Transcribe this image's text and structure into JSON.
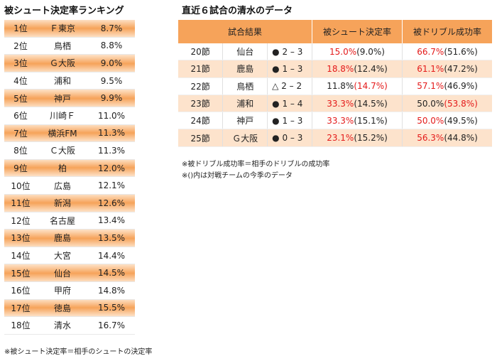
{
  "ranking": {
    "title": "被シュート決定率ランキング",
    "rows": [
      {
        "rank": "1位",
        "team": "Ｆ東京",
        "rate": "8.7%"
      },
      {
        "rank": "2位",
        "team": "鳥栖",
        "rate": "8.8%"
      },
      {
        "rank": "3位",
        "team": "Ｇ大阪",
        "rate": "9.0%"
      },
      {
        "rank": "4位",
        "team": "浦和",
        "rate": "9.5%"
      },
      {
        "rank": "5位",
        "team": "神戸",
        "rate": "9.9%"
      },
      {
        "rank": "6位",
        "team": "川崎Ｆ",
        "rate": "11.0%"
      },
      {
        "rank": "7位",
        "team": "横浜FM",
        "rate": "11.3%"
      },
      {
        "rank": "8位",
        "team": "Ｃ大阪",
        "rate": "11.3%"
      },
      {
        "rank": "9位",
        "team": "柏",
        "rate": "12.0%"
      },
      {
        "rank": "10位",
        "team": "広島",
        "rate": "12.1%"
      },
      {
        "rank": "11位",
        "team": "新潟",
        "rate": "12.6%"
      },
      {
        "rank": "12位",
        "team": "名古屋",
        "rate": "13.4%"
      },
      {
        "rank": "13位",
        "team": "鹿島",
        "rate": "13.5%"
      },
      {
        "rank": "14位",
        "team": "大宮",
        "rate": "14.4%"
      },
      {
        "rank": "15位",
        "team": "仙台",
        "rate": "14.5%"
      },
      {
        "rank": "16位",
        "team": "甲府",
        "rate": "14.8%"
      },
      {
        "rank": "17位",
        "team": "徳島",
        "rate": "15.5%"
      },
      {
        "rank": "18位",
        "team": "清水",
        "rate": "16.7%"
      }
    ],
    "note": "※被シュート決定率＝相手のシュートの決定率"
  },
  "recent": {
    "title": "直近６試合の清水のデータ",
    "headers": {
      "result": "試合結果",
      "shot": "被シュート決定率",
      "dribble": "被ドリブル成功率"
    },
    "rows": [
      {
        "section": "20節",
        "opponent": "仙台",
        "result": "● 2 – 3",
        "shot_main": "15.0%",
        "shot_sub": "(9.0%)",
        "drib_main": "66.7%",
        "drib_sub": "(51.6%)",
        "shot_main_red": true,
        "shot_sub_red": false,
        "drib_main_red": true,
        "drib_sub_red": false
      },
      {
        "section": "21節",
        "opponent": "鹿島",
        "result": "● 1 – 3",
        "shot_main": "18.8%",
        "shot_sub": "(12.4%)",
        "drib_main": "61.1%",
        "drib_sub": "(47.2%)",
        "shot_main_red": true,
        "shot_sub_red": false,
        "drib_main_red": true,
        "drib_sub_red": false
      },
      {
        "section": "22節",
        "opponent": "鳥栖",
        "result": "△ 2 – 2",
        "shot_main": "11.8%",
        "shot_sub": "(14.7%)",
        "drib_main": "57.1%",
        "drib_sub": "(46.9%)",
        "shot_main_red": false,
        "shot_sub_red": true,
        "drib_main_red": true,
        "drib_sub_red": false
      },
      {
        "section": "23節",
        "opponent": "浦和",
        "result": "● 1 – 4",
        "shot_main": "33.3%",
        "shot_sub": "(14.5%)",
        "drib_main": "50.0%",
        "drib_sub": "(53.8%)",
        "shot_main_red": true,
        "shot_sub_red": false,
        "drib_main_red": false,
        "drib_sub_red": true
      },
      {
        "section": "24節",
        "opponent": "神戸",
        "result": "● 1 – 3",
        "shot_main": "33.3%",
        "shot_sub": "(15.1%)",
        "drib_main": "50.0%",
        "drib_sub": "(49.5%)",
        "shot_main_red": true,
        "shot_sub_red": false,
        "drib_main_red": true,
        "drib_sub_red": false
      },
      {
        "section": "25節",
        "opponent": "Ｇ大阪",
        "result": "● 0 – 3",
        "shot_main": "23.1%",
        "shot_sub": "(15.2%)",
        "drib_main": "56.3%",
        "drib_sub": "(44.8%)",
        "shot_main_red": true,
        "shot_sub_red": false,
        "drib_main_red": true,
        "drib_sub_red": false
      }
    ],
    "notes": [
      "※被ドリブル成功率＝相手のドリブルの成功率",
      "※()内は対戦チームの今季のデータ"
    ]
  },
  "colors": {
    "highlight": "#f6a35a",
    "red_text": "#e41a1a",
    "shade": "#fde3cc"
  }
}
